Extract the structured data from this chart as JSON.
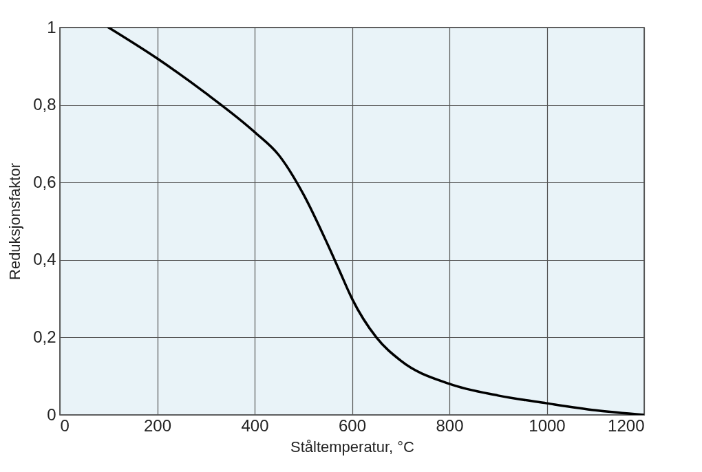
{
  "chart_data": {
    "type": "line",
    "xlabel": "Ståltemperatur, °C",
    "ylabel": "Reduksjonsfaktor",
    "x": [
      100,
      200,
      300,
      400,
      450,
      500,
      550,
      575,
      600,
      650,
      700,
      800,
      900,
      1000,
      1100,
      1200
    ],
    "series": [
      {
        "color": "#000000",
        "values": [
          1,
          0.92,
          0.83,
          0.73,
          0.67,
          0.57,
          0.44,
          0.37,
          0.3,
          0.2,
          0.14,
          0.08,
          0.05,
          0.03,
          0.012,
          0
        ]
      }
    ],
    "xlim": [
      0,
      1200
    ],
    "xticks": [
      0,
      200,
      400,
      600,
      800,
      1000,
      1200
    ],
    "ylim": [
      0,
      1
    ],
    "yticks": [
      0,
      {
        "value": 0.2,
        "label": "0,2"
      },
      {
        "value": 0.4,
        "label": "0,4"
      },
      {
        "value": 0.6,
        "label": "0,6"
      },
      {
        "value": 0.8,
        "label": "0,8"
      },
      1
    ],
    "grid": true,
    "marker": "none",
    "line_style": "solid"
  }
}
